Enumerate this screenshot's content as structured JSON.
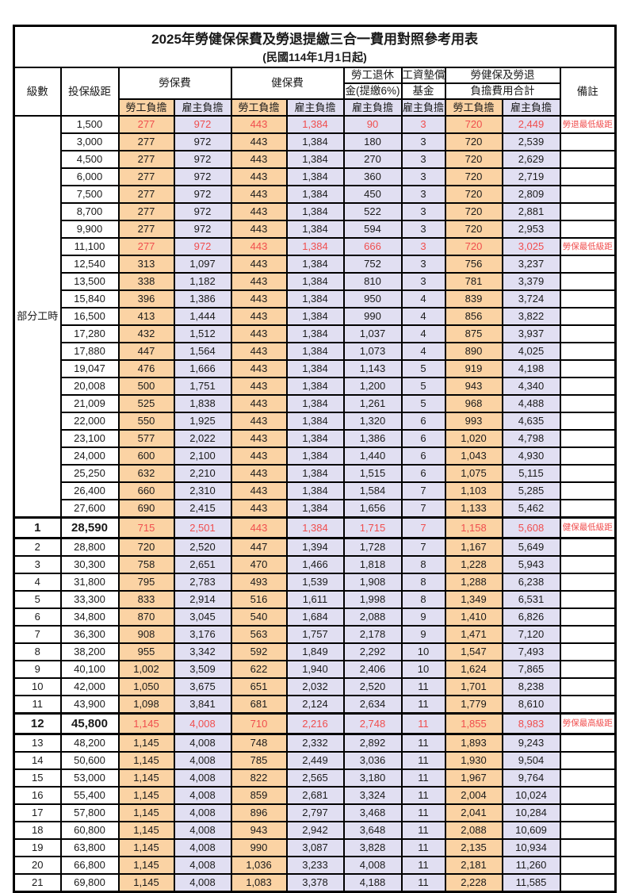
{
  "title": "2025年勞健保保費及勞退提繳三合一費用對照參考用表",
  "subtitle": "(民國114年1月1日起)",
  "header": {
    "level": "級數",
    "salary_bracket": "投保級距",
    "labor_insurance": "勞保費",
    "health_insurance": "健保費",
    "pension_line1": "勞工退休",
    "pension_line2": "金(提繳6%)",
    "wage_fund_line1": "工資墊償",
    "wage_fund_line2": "基金",
    "total_line1": "勞健保及勞退",
    "total_line2": "負擔費用合計",
    "remark": "備註",
    "employee_share": "勞工負擔",
    "employer_share": "雇主負擔"
  },
  "part_time_label": "部分工時",
  "part_time_rowspan": 23,
  "colors": {
    "employee_bg": "#FBD3A4",
    "employer_bg": "#E1DFF2",
    "highlight_text": "#F04E4E",
    "border": "#000000"
  },
  "column_order": [
    "labor_employee",
    "labor_employer",
    "health_employee",
    "health_employer",
    "pension_employer",
    "wage_fund_employer",
    "total_employee",
    "total_employer"
  ],
  "rows": [
    {
      "level": null,
      "salary": "1,500",
      "values": [
        "277",
        "972",
        "443",
        "1,384",
        "90",
        "3",
        "720",
        "2,449"
      ],
      "remark": "勞退最低級距",
      "red": true,
      "big": false
    },
    {
      "level": null,
      "salary": "3,000",
      "values": [
        "277",
        "972",
        "443",
        "1,384",
        "180",
        "3",
        "720",
        "2,539"
      ],
      "remark": "",
      "red": false,
      "big": false
    },
    {
      "level": null,
      "salary": "4,500",
      "values": [
        "277",
        "972",
        "443",
        "1,384",
        "270",
        "3",
        "720",
        "2,629"
      ],
      "remark": "",
      "red": false,
      "big": false
    },
    {
      "level": null,
      "salary": "6,000",
      "values": [
        "277",
        "972",
        "443",
        "1,384",
        "360",
        "3",
        "720",
        "2,719"
      ],
      "remark": "",
      "red": false,
      "big": false
    },
    {
      "level": null,
      "salary": "7,500",
      "values": [
        "277",
        "972",
        "443",
        "1,384",
        "450",
        "3",
        "720",
        "2,809"
      ],
      "remark": "",
      "red": false,
      "big": false
    },
    {
      "level": null,
      "salary": "8,700",
      "values": [
        "277",
        "972",
        "443",
        "1,384",
        "522",
        "3",
        "720",
        "2,881"
      ],
      "remark": "",
      "red": false,
      "big": false
    },
    {
      "level": null,
      "salary": "9,900",
      "values": [
        "277",
        "972",
        "443",
        "1,384",
        "594",
        "3",
        "720",
        "2,953"
      ],
      "remark": "",
      "red": false,
      "big": false
    },
    {
      "level": null,
      "salary": "11,100",
      "values": [
        "277",
        "972",
        "443",
        "1,384",
        "666",
        "3",
        "720",
        "3,025"
      ],
      "remark": "勞保最低級距",
      "red": true,
      "big": false
    },
    {
      "level": null,
      "salary": "12,540",
      "values": [
        "313",
        "1,097",
        "443",
        "1,384",
        "752",
        "3",
        "756",
        "3,237"
      ],
      "remark": "",
      "red": false,
      "big": false
    },
    {
      "level": null,
      "salary": "13,500",
      "values": [
        "338",
        "1,182",
        "443",
        "1,384",
        "810",
        "3",
        "781",
        "3,379"
      ],
      "remark": "",
      "red": false,
      "big": false
    },
    {
      "level": null,
      "salary": "15,840",
      "values": [
        "396",
        "1,386",
        "443",
        "1,384",
        "950",
        "4",
        "839",
        "3,724"
      ],
      "remark": "",
      "red": false,
      "big": false
    },
    {
      "level": null,
      "salary": "16,500",
      "values": [
        "413",
        "1,444",
        "443",
        "1,384",
        "990",
        "4",
        "856",
        "3,822"
      ],
      "remark": "",
      "red": false,
      "big": false
    },
    {
      "level": null,
      "salary": "17,280",
      "values": [
        "432",
        "1,512",
        "443",
        "1,384",
        "1,037",
        "4",
        "875",
        "3,937"
      ],
      "remark": "",
      "red": false,
      "big": false
    },
    {
      "level": null,
      "salary": "17,880",
      "values": [
        "447",
        "1,564",
        "443",
        "1,384",
        "1,073",
        "4",
        "890",
        "4,025"
      ],
      "remark": "",
      "red": false,
      "big": false
    },
    {
      "level": null,
      "salary": "19,047",
      "values": [
        "476",
        "1,666",
        "443",
        "1,384",
        "1,143",
        "5",
        "919",
        "4,198"
      ],
      "remark": "",
      "red": false,
      "big": false
    },
    {
      "level": null,
      "salary": "20,008",
      "values": [
        "500",
        "1,751",
        "443",
        "1,384",
        "1,200",
        "5",
        "943",
        "4,340"
      ],
      "remark": "",
      "red": false,
      "big": false
    },
    {
      "level": null,
      "salary": "21,009",
      "values": [
        "525",
        "1,838",
        "443",
        "1,384",
        "1,261",
        "5",
        "968",
        "4,488"
      ],
      "remark": "",
      "red": false,
      "big": false
    },
    {
      "level": null,
      "salary": "22,000",
      "values": [
        "550",
        "1,925",
        "443",
        "1,384",
        "1,320",
        "6",
        "993",
        "4,635"
      ],
      "remark": "",
      "red": false,
      "big": false
    },
    {
      "level": null,
      "salary": "23,100",
      "values": [
        "577",
        "2,022",
        "443",
        "1,384",
        "1,386",
        "6",
        "1,020",
        "4,798"
      ],
      "remark": "",
      "red": false,
      "big": false
    },
    {
      "level": null,
      "salary": "24,000",
      "values": [
        "600",
        "2,100",
        "443",
        "1,384",
        "1,440",
        "6",
        "1,043",
        "4,930"
      ],
      "remark": "",
      "red": false,
      "big": false
    },
    {
      "level": null,
      "salary": "25,250",
      "values": [
        "632",
        "2,210",
        "443",
        "1,384",
        "1,515",
        "6",
        "1,075",
        "5,115"
      ],
      "remark": "",
      "red": false,
      "big": false
    },
    {
      "level": null,
      "salary": "26,400",
      "values": [
        "660",
        "2,310",
        "443",
        "1,384",
        "1,584",
        "7",
        "1,103",
        "5,285"
      ],
      "remark": "",
      "red": false,
      "big": false
    },
    {
      "level": null,
      "salary": "27,600",
      "values": [
        "690",
        "2,415",
        "443",
        "1,384",
        "1,656",
        "7",
        "1,133",
        "5,462"
      ],
      "remark": "",
      "red": false,
      "big": false
    },
    {
      "level": "1",
      "salary": "28,590",
      "values": [
        "715",
        "2,501",
        "443",
        "1,384",
        "1,715",
        "7",
        "1,158",
        "5,608"
      ],
      "remark": "健保最低級距",
      "red": true,
      "big": true
    },
    {
      "level": "2",
      "salary": "28,800",
      "values": [
        "720",
        "2,520",
        "447",
        "1,394",
        "1,728",
        "7",
        "1,167",
        "5,649"
      ],
      "remark": "",
      "red": false,
      "big": false
    },
    {
      "level": "3",
      "salary": "30,300",
      "values": [
        "758",
        "2,651",
        "470",
        "1,466",
        "1,818",
        "8",
        "1,228",
        "5,943"
      ],
      "remark": "",
      "red": false,
      "big": false
    },
    {
      "level": "4",
      "salary": "31,800",
      "values": [
        "795",
        "2,783",
        "493",
        "1,539",
        "1,908",
        "8",
        "1,288",
        "6,238"
      ],
      "remark": "",
      "red": false,
      "big": false
    },
    {
      "level": "5",
      "salary": "33,300",
      "values": [
        "833",
        "2,914",
        "516",
        "1,611",
        "1,998",
        "8",
        "1,349",
        "6,531"
      ],
      "remark": "",
      "red": false,
      "big": false
    },
    {
      "level": "6",
      "salary": "34,800",
      "values": [
        "870",
        "3,045",
        "540",
        "1,684",
        "2,088",
        "9",
        "1,410",
        "6,826"
      ],
      "remark": "",
      "red": false,
      "big": false
    },
    {
      "level": "7",
      "salary": "36,300",
      "values": [
        "908",
        "3,176",
        "563",
        "1,757",
        "2,178",
        "9",
        "1,471",
        "7,120"
      ],
      "remark": "",
      "red": false,
      "big": false
    },
    {
      "level": "8",
      "salary": "38,200",
      "values": [
        "955",
        "3,342",
        "592",
        "1,849",
        "2,292",
        "10",
        "1,547",
        "7,493"
      ],
      "remark": "",
      "red": false,
      "big": false
    },
    {
      "level": "9",
      "salary": "40,100",
      "values": [
        "1,002",
        "3,509",
        "622",
        "1,940",
        "2,406",
        "10",
        "1,624",
        "7,865"
      ],
      "remark": "",
      "red": false,
      "big": false
    },
    {
      "level": "10",
      "salary": "42,000",
      "values": [
        "1,050",
        "3,675",
        "651",
        "2,032",
        "2,520",
        "11",
        "1,701",
        "8,238"
      ],
      "remark": "",
      "red": false,
      "big": false
    },
    {
      "level": "11",
      "salary": "43,900",
      "values": [
        "1,098",
        "3,841",
        "681",
        "2,124",
        "2,634",
        "11",
        "1,779",
        "8,610"
      ],
      "remark": "",
      "red": false,
      "big": false
    },
    {
      "level": "12",
      "salary": "45,800",
      "values": [
        "1,145",
        "4,008",
        "710",
        "2,216",
        "2,748",
        "11",
        "1,855",
        "8,983"
      ],
      "remark": "勞保最高級距",
      "red": true,
      "big": true
    },
    {
      "level": "13",
      "salary": "48,200",
      "values": [
        "1,145",
        "4,008",
        "748",
        "2,332",
        "2,892",
        "11",
        "1,893",
        "9,243"
      ],
      "remark": "",
      "red": false,
      "big": false
    },
    {
      "level": "14",
      "salary": "50,600",
      "values": [
        "1,145",
        "4,008",
        "785",
        "2,449",
        "3,036",
        "11",
        "1,930",
        "9,504"
      ],
      "remark": "",
      "red": false,
      "big": false
    },
    {
      "level": "15",
      "salary": "53,000",
      "values": [
        "1,145",
        "4,008",
        "822",
        "2,565",
        "3,180",
        "11",
        "1,967",
        "9,764"
      ],
      "remark": "",
      "red": false,
      "big": false
    },
    {
      "level": "16",
      "salary": "55,400",
      "values": [
        "1,145",
        "4,008",
        "859",
        "2,681",
        "3,324",
        "11",
        "2,004",
        "10,024"
      ],
      "remark": "",
      "red": false,
      "big": false
    },
    {
      "level": "17",
      "salary": "57,800",
      "values": [
        "1,145",
        "4,008",
        "896",
        "2,797",
        "3,468",
        "11",
        "2,041",
        "10,284"
      ],
      "remark": "",
      "red": false,
      "big": false
    },
    {
      "level": "18",
      "salary": "60,800",
      "values": [
        "1,145",
        "4,008",
        "943",
        "2,942",
        "3,648",
        "11",
        "2,088",
        "10,609"
      ],
      "remark": "",
      "red": false,
      "big": false
    },
    {
      "level": "19",
      "salary": "63,800",
      "values": [
        "1,145",
        "4,008",
        "990",
        "3,087",
        "3,828",
        "11",
        "2,135",
        "10,934"
      ],
      "remark": "",
      "red": false,
      "big": false
    },
    {
      "level": "20",
      "salary": "66,800",
      "values": [
        "1,145",
        "4,008",
        "1,036",
        "3,233",
        "4,008",
        "11",
        "2,181",
        "11,260"
      ],
      "remark": "",
      "red": false,
      "big": false
    },
    {
      "level": "21",
      "salary": "69,800",
      "values": [
        "1,145",
        "4,008",
        "1,083",
        "3,378",
        "4,188",
        "11",
        "2,228",
        "11,585"
      ],
      "remark": "",
      "red": false,
      "big": false
    }
  ]
}
